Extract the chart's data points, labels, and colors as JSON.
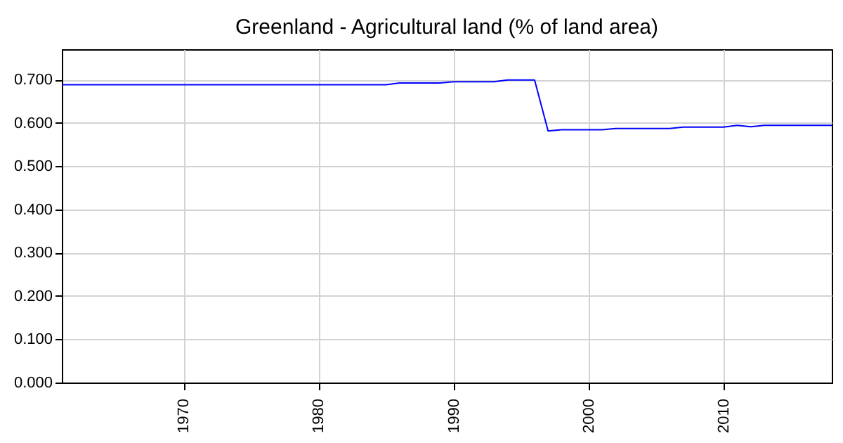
{
  "chart_data": {
    "type": "line",
    "title": "Greenland - Agricultural land (% of land area)",
    "x": [
      1961,
      1962,
      1963,
      1964,
      1965,
      1966,
      1967,
      1968,
      1969,
      1970,
      1971,
      1972,
      1973,
      1974,
      1975,
      1976,
      1977,
      1978,
      1979,
      1980,
      1981,
      1982,
      1983,
      1984,
      1985,
      1986,
      1987,
      1988,
      1989,
      1990,
      1991,
      1992,
      1993,
      1994,
      1995,
      1996,
      1997,
      1998,
      1999,
      2000,
      2001,
      2002,
      2003,
      2004,
      2005,
      2006,
      2007,
      2008,
      2009,
      2010,
      2011,
      2012,
      2013,
      2014,
      2015,
      2016,
      2017,
      2018
    ],
    "series": [
      {
        "color": "#0000ff",
        "values": [
          0.688,
          0.688,
          0.688,
          0.688,
          0.688,
          0.688,
          0.688,
          0.688,
          0.688,
          0.688,
          0.688,
          0.688,
          0.688,
          0.688,
          0.688,
          0.688,
          0.688,
          0.688,
          0.688,
          0.688,
          0.688,
          0.688,
          0.688,
          0.688,
          0.688,
          0.692,
          0.692,
          0.692,
          0.692,
          0.695,
          0.695,
          0.695,
          0.695,
          0.699,
          0.699,
          0.699,
          0.581,
          0.584,
          0.584,
          0.584,
          0.584,
          0.587,
          0.587,
          0.587,
          0.587,
          0.587,
          0.59,
          0.59,
          0.59,
          0.59,
          0.594,
          0.591,
          0.594,
          0.594,
          0.594,
          0.594,
          0.594,
          0.594
        ]
      }
    ],
    "xlim": [
      1961,
      2018
    ],
    "xticks": [
      1970,
      1980,
      1990,
      2000,
      2010
    ],
    "ylim": [
      0,
      0.77
    ],
    "yticks": [
      {
        "value": 0,
        "label": "0.000"
      },
      {
        "value": 0.1,
        "label": "0.100"
      },
      {
        "value": 0.2,
        "label": "0.200"
      },
      {
        "value": 0.3,
        "label": "0.300"
      },
      {
        "value": 0.4,
        "label": "0.400"
      },
      {
        "value": 0.5,
        "label": "0.500"
      },
      {
        "value": 0.6,
        "label": "0.600"
      },
      {
        "value": 0.7,
        "label": "0.700"
      }
    ],
    "grid": true
  }
}
